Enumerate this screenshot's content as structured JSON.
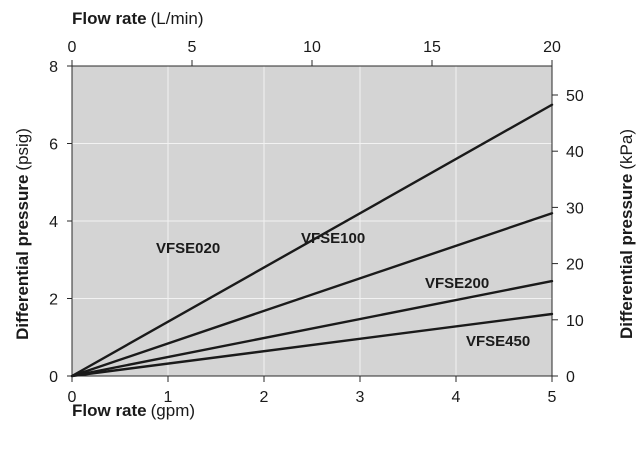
{
  "chart_data": {
    "type": "line",
    "x_bottom": {
      "label": "Flow rate",
      "unit": "(gpm)",
      "range": [
        0,
        5
      ],
      "ticks": [
        "0",
        "1",
        "2",
        "3",
        "4",
        "5"
      ]
    },
    "x_top": {
      "label": "Flow rate",
      "unit": "(L/min)",
      "range": [
        0,
        20
      ],
      "ticks": [
        "0",
        "5",
        "10",
        "15",
        "20"
      ]
    },
    "y_left": {
      "label": "Differential pressure",
      "unit": "(psig)",
      "range": [
        0,
        8
      ],
      "ticks": [
        "0",
        "2",
        "4",
        "6",
        "8"
      ]
    },
    "y_right": {
      "label": "Differential pressure",
      "unit": "(kPa)",
      "ticks": [
        "0",
        "10",
        "20",
        "30",
        "40",
        "50"
      ]
    },
    "grid": true,
    "series": [
      {
        "name": "VFSE020",
        "x": [
          0,
          5
        ],
        "y": [
          0,
          7.0
        ]
      },
      {
        "name": "VFSE100",
        "x": [
          0,
          5
        ],
        "y": [
          0,
          4.2
        ]
      },
      {
        "name": "VFSE200",
        "x": [
          0,
          5
        ],
        "y": [
          0,
          2.45
        ]
      },
      {
        "name": "VFSE450",
        "x": [
          0,
          5
        ],
        "y": [
          0,
          1.6
        ]
      }
    ],
    "colors": {
      "plot_background": "#d4d4d4",
      "grid": "#f2f2f2",
      "line": "#1a1a1a"
    }
  }
}
